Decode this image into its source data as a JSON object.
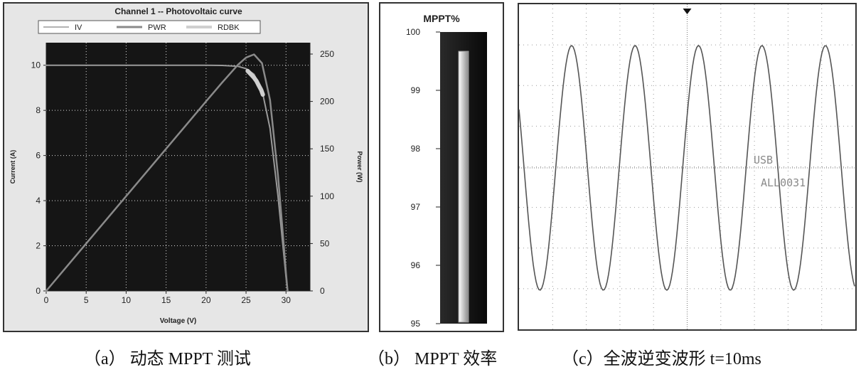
{
  "chart_data": [
    {
      "type": "line",
      "title": "Channel 1 -- Photovoltaic curve",
      "xlabel": "Voltage (V)",
      "ylabel": "Current (A)",
      "y2label": "Power (W)",
      "xlim": [
        0,
        33
      ],
      "ylim": [
        0,
        11
      ],
      "y2lim": [
        0,
        262
      ],
      "x_ticks": [
        0,
        5,
        10,
        15,
        20,
        25,
        30
      ],
      "y_ticks": [
        0,
        2,
        4,
        6,
        8,
        10
      ],
      "y2_ticks": [
        0,
        50,
        100,
        150,
        200,
        250
      ],
      "grid": true,
      "legend": [
        "IV",
        "PWR",
        "RDBK"
      ],
      "legend_position": "top",
      "series": [
        {
          "name": "IV",
          "axis": "left",
          "x": [
            0,
            5,
            10,
            15,
            20,
            22,
            24,
            25,
            26,
            27,
            28,
            29,
            29.5,
            30,
            30.2
          ],
          "y": [
            10,
            10,
            10,
            10,
            10,
            9.99,
            9.95,
            9.85,
            9.6,
            8.9,
            7.2,
            4.2,
            2.4,
            0.6,
            0
          ]
        },
        {
          "name": "PWR",
          "axis": "right",
          "x": [
            0,
            5,
            10,
            15,
            20,
            22,
            24,
            25,
            26,
            27,
            28,
            29,
            29.5,
            30,
            30.2
          ],
          "y": [
            0,
            50,
            100,
            150,
            200,
            219.8,
            238.8,
            246.3,
            249.6,
            240.3,
            201.6,
            121.8,
            70.8,
            18,
            0
          ]
        },
        {
          "name": "RDBK",
          "axis": "left",
          "x": [
            25.2,
            25.6,
            26.0,
            26.3,
            26.6,
            26.9,
            27.1
          ],
          "y": [
            9.75,
            9.6,
            9.45,
            9.3,
            9.1,
            8.9,
            8.7
          ]
        }
      ]
    },
    {
      "type": "bar",
      "title": "MPPT%",
      "ylim": [
        95,
        100
      ],
      "y_ticks": [
        "100",
        "99",
        "98",
        "97",
        "96",
        "95"
      ],
      "categories": [
        ""
      ],
      "values": [
        99.67
      ]
    },
    {
      "type": "line",
      "labels": [
        "USB",
        "ALL0031"
      ],
      "x": [
        0,
        20,
        40,
        60,
        80,
        100
      ],
      "series": [
        {
          "amplitude": 1,
          "cycles": 5,
          "period_ms": 20
        }
      ]
    }
  ],
  "captions": {
    "a": "（a） 动态 MPPT 测试",
    "b": "（b） MPPT 效率",
    "c": "（c）全波逆变波形 t=10ms"
  },
  "colors": {
    "plot_bg": "#151515",
    "iv_line": "#9a9a9a",
    "pwr_line": "#8a8a8a",
    "rdbk_line": "#cfcfcf",
    "grid": "#dddddd",
    "wave": "#555555"
  }
}
